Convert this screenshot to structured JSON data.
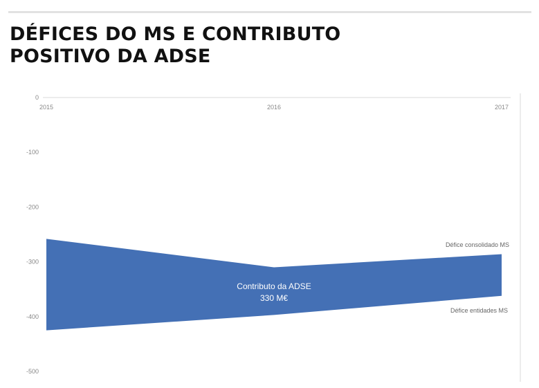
{
  "title_lines": [
    "DÉFICES DO MS E CONTRIBUTO",
    "POSITIVO DA ADSE"
  ],
  "chart_data": {
    "type": "area",
    "title": "DÉFICES DO MS E CONTRIBUTO POSITIVO DA ADSE",
    "x": [
      "2015",
      "2016",
      "2017"
    ],
    "series": [
      {
        "name": "Défice consolidado MS",
        "values": [
          -258,
          -310,
          -286
        ]
      },
      {
        "name": "Défice entidades MS",
        "values": [
          -425,
          -397,
          -362
        ]
      }
    ],
    "ylim": [
      -500,
      0
    ],
    "yticks": [
      0,
      -100,
      -200,
      -300,
      -400,
      -500
    ],
    "ytick_labels": [
      "0",
      "-100",
      "-200",
      "-300",
      "-400",
      "-500"
    ],
    "annotation": [
      "Contributo da ADSE",
      "330 M€"
    ],
    "fill_color": "#4470b5",
    "grid": false
  }
}
